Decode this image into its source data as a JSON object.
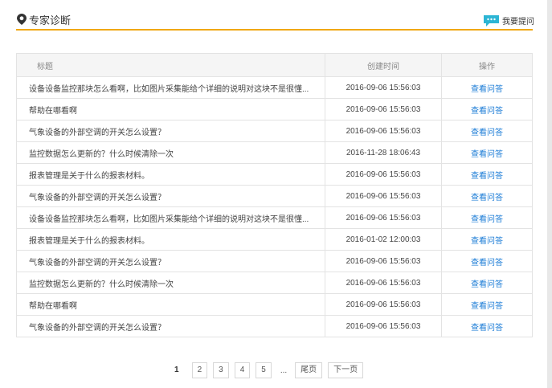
{
  "header": {
    "title": "专家诊断",
    "action": "我要提问"
  },
  "table": {
    "columns": [
      "标题",
      "创建时间",
      "操作"
    ],
    "rows": [
      [
        "设备设备监控那块怎么看啊，比如图片采集能给个详细的说明对这块不是很懂...",
        "2016-09-06 15:56:03",
        "查看问答"
      ],
      [
        "帮助在哪看啊",
        "2016-09-06 15:56:03",
        "查看问答"
      ],
      [
        "气象设备的外部空调的开关怎么设置？",
        "2016-09-06 15:56:03",
        "查看问答"
      ],
      [
        "监控数据怎么更新的？什么时候清除一次",
        "2016-11-28 18:06:43",
        "查看问答"
      ],
      [
        "报表管理是关于什么的报表材料。",
        "2016-09-06 15:56:03",
        "查看问答"
      ],
      [
        "气象设备的外部空调的开关怎么设置？",
        "2016-09-06 15:56:03",
        "查看问答"
      ],
      [
        "设备设备监控那块怎么看啊，比如图片采集能给个详细的说明对这块不是很懂...",
        "2016-09-06 15:56:03",
        "查看问答"
      ],
      [
        "报表管理是关于什么的报表材料。",
        "2016-01-02 12:00:03",
        "查看问答"
      ],
      [
        "气象设备的外部空调的开关怎么设置？",
        "2016-09-06 15:56:03",
        "查看问答"
      ],
      [
        "监控数据怎么更新的？什么时候清除一次",
        "2016-09-06 15:56:03",
        "查看问答"
      ],
      [
        "帮助在哪看啊",
        "2016-09-06 15:56:03",
        "查看问答"
      ],
      [
        "气象设备的外部空调的开关怎么设置？",
        "2016-09-06 15:56:03",
        "查看问答"
      ]
    ]
  },
  "pagination": {
    "pages": [
      1,
      2,
      3,
      4,
      5
    ],
    "ellipsis": "...",
    "last": "尾页",
    "next": "下一页"
  }
}
